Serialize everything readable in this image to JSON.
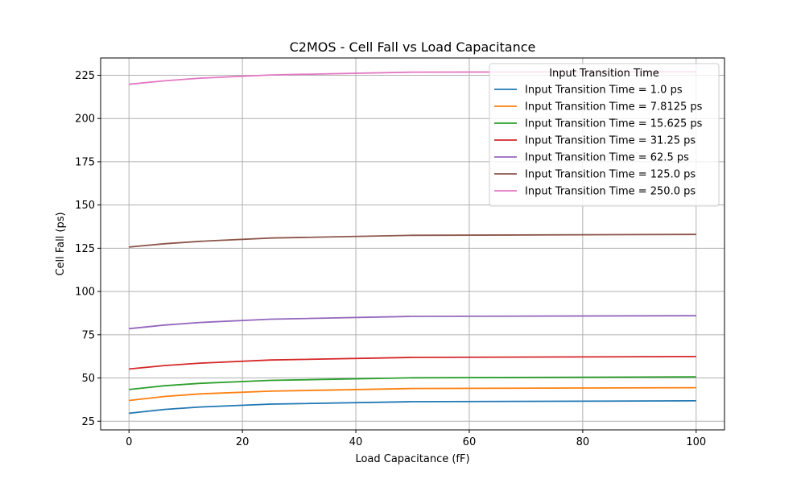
{
  "chart_data": {
    "type": "line",
    "title": "C2MOS - Cell Fall vs Load Capacitance",
    "xlabel": "Load Capacitance (fF)",
    "ylabel": "Cell Fall (ps)",
    "xlim": [
      -5,
      105
    ],
    "ylim": [
      20,
      235
    ],
    "xticks": [
      0,
      20,
      40,
      60,
      80,
      100
    ],
    "yticks": [
      25,
      50,
      75,
      100,
      125,
      150,
      175,
      200,
      225
    ],
    "grid": true,
    "legend": {
      "title": "Input Transition Time",
      "placement": "top-right"
    },
    "x": [
      0,
      6.25,
      12.5,
      25,
      50,
      100
    ],
    "series": [
      {
        "name": "Input Transition Time = 1.0 ps",
        "color": "#1f77b4",
        "values": [
          29.6,
          31.8,
          33.2,
          34.9,
          36.3,
          36.8
        ]
      },
      {
        "name": "Input Transition Time = 7.8125 ps",
        "color": "#ff7f0e",
        "values": [
          37.0,
          39.3,
          40.8,
          42.4,
          43.9,
          44.4
        ]
      },
      {
        "name": "Input Transition Time = 15.625 ps",
        "color": "#2ca02c",
        "values": [
          43.3,
          45.5,
          46.9,
          48.6,
          50.1,
          50.6
        ]
      },
      {
        "name": "Input Transition Time = 31.25 ps",
        "color": "#d62728",
        "values": [
          55.2,
          57.2,
          58.6,
          60.4,
          61.9,
          62.4
        ]
      },
      {
        "name": "Input Transition Time = 62.5 ps",
        "color": "#9467bd",
        "values": [
          78.5,
          80.6,
          82.1,
          84.0,
          85.6,
          86.0
        ]
      },
      {
        "name": "Input Transition Time = 125.0 ps",
        "color": "#8c564b",
        "values": [
          125.7,
          127.6,
          129.0,
          130.9,
          132.5,
          133.0
        ]
      },
      {
        "name": "Input Transition Time = 250.0 ps",
        "color": "#e377c2",
        "values": [
          219.8,
          221.8,
          223.3,
          225.2,
          226.8,
          227.0
        ]
      }
    ]
  }
}
